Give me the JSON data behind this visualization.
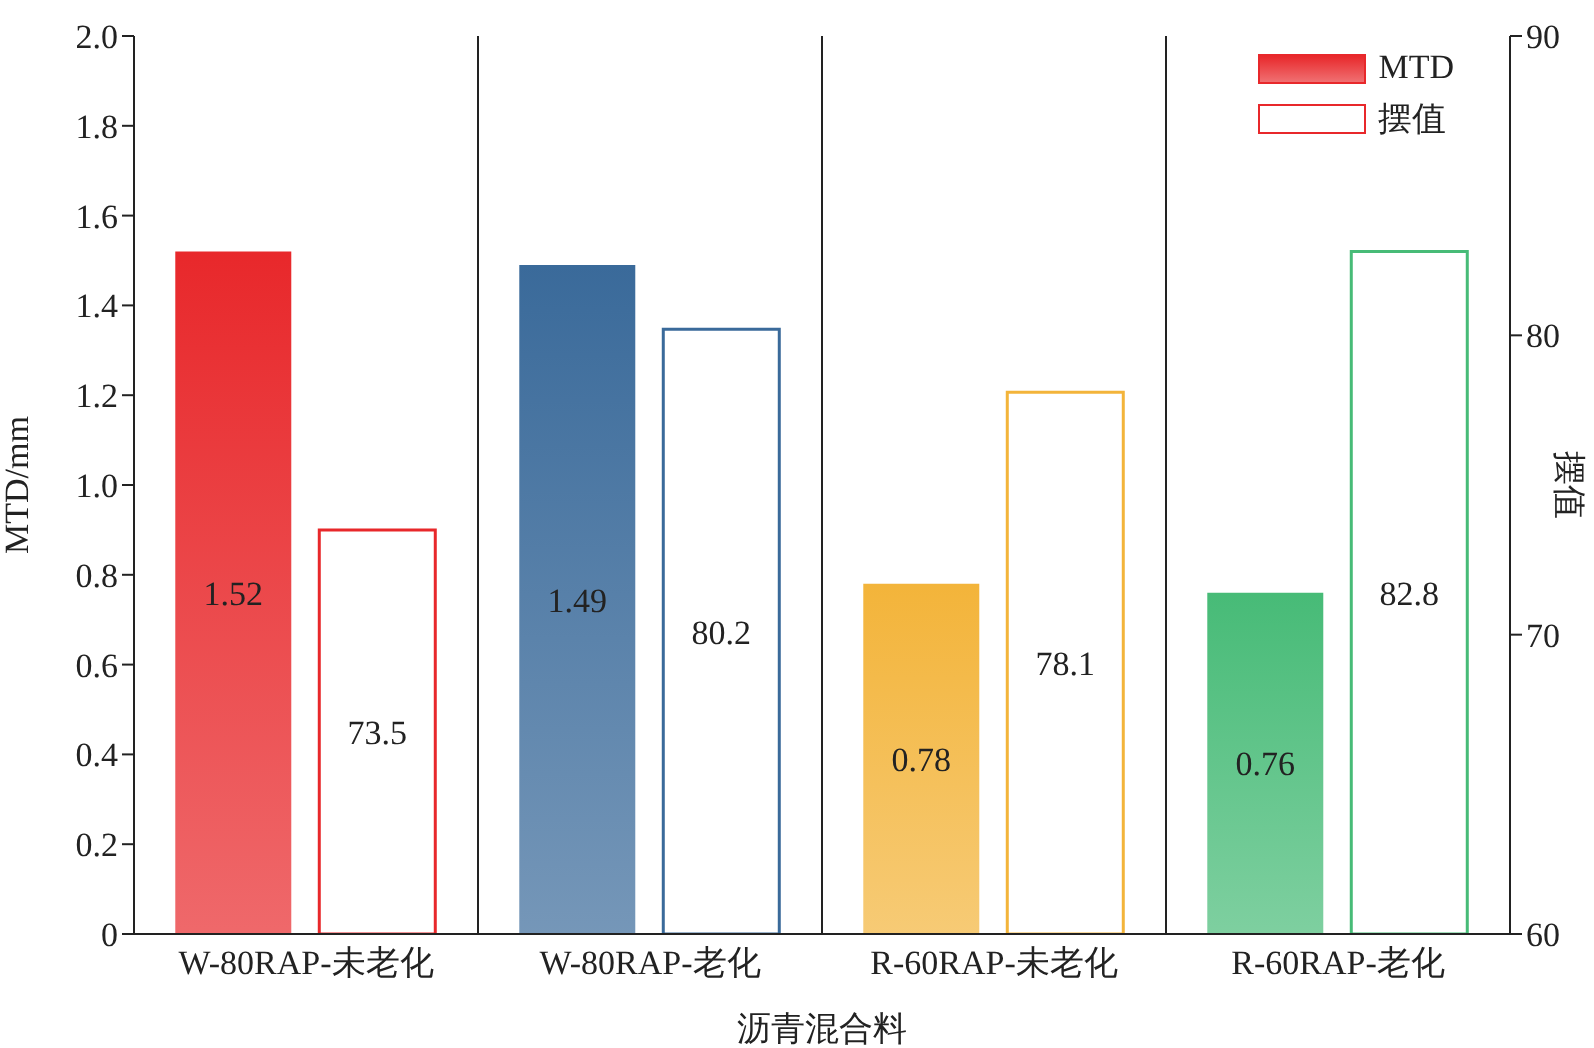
{
  "chart_data": {
    "type": "bar",
    "xlabel": "沥青混合料",
    "ylabel": "MTD/mm",
    "y2label": "摆值",
    "categories": [
      "W-80RAP-未老化",
      "W-80RAP-老化",
      "R-60RAP-未老化",
      "R-60RAP-老化"
    ],
    "series": [
      {
        "name": "MTD",
        "type": "bar",
        "colors": [
          "#e8282b",
          "#3a6a9a",
          "#f3b43a",
          "#47bb77"
        ],
        "values": [
          1.52,
          1.49,
          0.78,
          0.76
        ]
      },
      {
        "name": "摆值",
        "type": "bar",
        "axis": "y2",
        "colors": [
          "#e8282b",
          "#3a6a9a",
          "#f3b43a",
          "#47bb77"
        ],
        "values": [
          73.5,
          80.2,
          78.1,
          82.8
        ]
      }
    ],
    "ylim": [
      0,
      2.0
    ],
    "yticks": [
      0,
      0.2,
      0.4,
      0.6,
      0.8,
      {
        "value": 1,
        "label": "1.0"
      },
      1.2,
      1.4,
      1.6,
      1.8,
      {
        "value": 2,
        "label": "2.0"
      }
    ],
    "y2lim": [
      60,
      90
    ],
    "y2ticks": [
      60,
      70,
      80,
      90
    ],
    "data_labels": true,
    "legend": "top right"
  }
}
